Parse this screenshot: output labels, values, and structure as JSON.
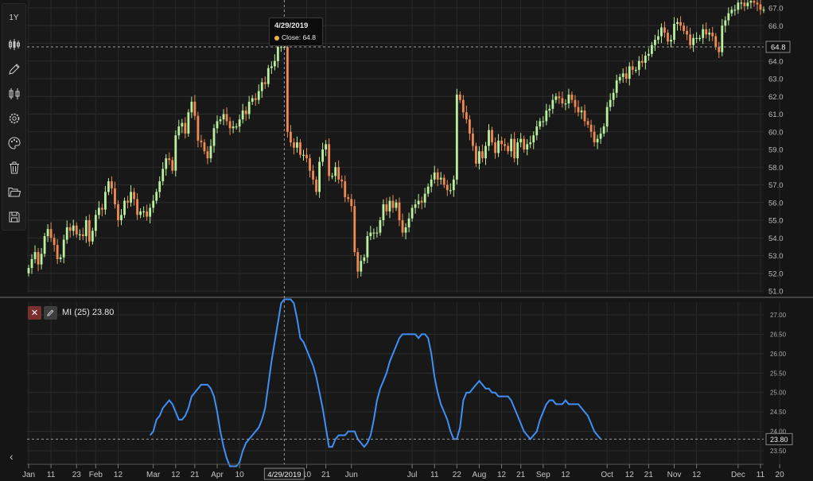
{
  "toolbar": {
    "range_label": "1Y",
    "tools": [
      "candles-icon",
      "pen-icon",
      "candlestick-icon",
      "gear-icon",
      "palette-icon",
      "trash-icon",
      "folder-icon",
      "save-icon"
    ]
  },
  "tooltip": {
    "date": "4/29/2019",
    "close_text": "Close: 64.8"
  },
  "crosshair": {
    "date_label": "4/29/2019",
    "price_label": "64.8",
    "price": 64.8,
    "x_index": 80
  },
  "indicator": {
    "label": "MI (25) 23.80",
    "value_label": "23.80",
    "value": 23.8
  },
  "chart_data": [
    {
      "type": "candlestick",
      "y_ticks": [
        "67.0",
        "66.0",
        "65.0",
        "64.0",
        "63.0",
        "62.0",
        "61.0",
        "60.0",
        "59.0",
        "58.0",
        "57.0",
        "56.0",
        "55.0",
        "54.0",
        "53.0",
        "52.0",
        "51.0"
      ],
      "ylim": [
        51.0,
        67.4
      ],
      "x_ticks": [
        {
          "label": "Jan",
          "i": 0
        },
        {
          "label": "11",
          "i": 7
        },
        {
          "label": "23",
          "i": 15
        },
        {
          "label": "Feb",
          "i": 21
        },
        {
          "label": "12",
          "i": 28
        },
        {
          "label": "Mar",
          "i": 39
        },
        {
          "label": "12",
          "i": 46
        },
        {
          "label": "21",
          "i": 52
        },
        {
          "label": "Apr",
          "i": 59
        },
        {
          "label": "10",
          "i": 66
        },
        {
          "label": "10",
          "i": 87
        },
        {
          "label": "21",
          "i": 93
        },
        {
          "label": "Jun",
          "i": 101
        },
        {
          "label": "Jul",
          "i": 120
        },
        {
          "label": "11",
          "i": 127
        },
        {
          "label": "22",
          "i": 134
        },
        {
          "label": "Aug",
          "i": 141
        },
        {
          "label": "12",
          "i": 148
        },
        {
          "label": "21",
          "i": 154
        },
        {
          "label": "Sep",
          "i": 161
        },
        {
          "label": "12",
          "i": 168
        },
        {
          "label": "Oct",
          "i": 181
        },
        {
          "label": "12",
          "i": 188
        },
        {
          "label": "21",
          "i": 194
        },
        {
          "label": "Nov",
          "i": 202
        },
        {
          "label": "12",
          "i": 209
        },
        {
          "label": "Dec",
          "i": 222
        },
        {
          "label": "11",
          "i": 229
        },
        {
          "label": "20",
          "i": 235
        }
      ],
      "close": [
        52.3,
        52.8,
        53.2,
        52.5,
        53.1,
        54.1,
        54.5,
        54.0,
        53.6,
        52.8,
        52.9,
        53.9,
        54.6,
        54.4,
        54.7,
        54.2,
        54.2,
        54.1,
        55.0,
        53.8,
        54.4,
        55.3,
        55.7,
        55.6,
        56.6,
        57.2,
        56.8,
        55.9,
        55.0,
        55.3,
        56.1,
        56.0,
        56.6,
        56.2,
        55.3,
        55.5,
        55.5,
        55.2,
        55.7,
        56.1,
        56.6,
        57.2,
        57.9,
        58.5,
        58.4,
        57.8,
        59.8,
        60.3,
        60.5,
        59.9,
        61.1,
        61.7,
        60.9,
        59.5,
        59.4,
        58.9,
        58.5,
        59.2,
        60.2,
        60.6,
        60.7,
        61.0,
        60.6,
        60.2,
        60.3,
        60.3,
        60.7,
        61.2,
        61.0,
        61.7,
        61.9,
        61.8,
        62.3,
        62.8,
        62.7,
        63.6,
        63.7,
        64.0,
        64.8,
        64.8,
        64.8,
        60.0,
        59.4,
        59.1,
        59.4,
        58.7,
        58.7,
        58.5,
        57.8,
        57.3,
        56.6,
        58.3,
        59.0,
        59.3,
        57.5,
        57.5,
        58.0,
        57.3,
        57.2,
        56.3,
        56.2,
        55.8,
        53.2,
        52.1,
        52.7,
        52.9,
        54.1,
        54.3,
        54.3,
        54.3,
        55.0,
        55.9,
        55.5,
        56.1,
        55.7,
        56.0,
        55.0,
        54.3,
        54.6,
        55.1,
        55.7,
        55.9,
        56.1,
        56.0,
        56.5,
        56.9,
        57.3,
        57.7,
        57.3,
        57.4,
        57.0,
        56.7,
        56.7,
        57.3,
        62.1,
        61.8,
        61.1,
        60.7,
        59.9,
        59.2,
        58.2,
        58.9,
        58.5,
        59.2,
        60.1,
        59.4,
        58.8,
        59.5,
        59.3,
        59.2,
        58.9,
        59.6,
        58.5,
        59.4,
        59.6,
        59.0,
        59.3,
        59.4,
        59.8,
        60.3,
        60.6,
        60.6,
        61.2,
        61.3,
        61.8,
        62.0,
        61.9,
        61.6,
        61.6,
        62.1,
        61.8,
        61.4,
        61.1,
        61.2,
        60.6,
        60.4,
        60.0,
        59.4,
        59.6,
        59.9,
        60.3,
        61.4,
        61.8,
        62.2,
        62.9,
        63.1,
        63.3,
        63.0,
        63.7,
        63.5,
        63.5,
        64.0,
        63.9,
        64.3,
        64.4,
        64.9,
        65.2,
        65.4,
        65.9,
        65.6,
        65.1,
        65.2,
        66.1,
        66.2,
        66.0,
        65.7,
        65.5,
        64.9,
        65.3,
        65.3,
        65.3,
        65.8,
        65.5,
        65.6,
        65.4,
        64.8,
        64.5,
        66.0,
        66.3,
        66.7,
        66.9,
        66.9,
        67.3,
        67.3,
        67.1,
        67.3,
        67.4,
        67.3,
        67.2,
        66.9,
        66.9
      ]
    },
    {
      "type": "line",
      "series": [
        {
          "name": "MI (25)"
        }
      ],
      "y_ticks": [
        "27.00",
        "26.50",
        "26.00",
        "25.50",
        "25.00",
        "24.50",
        "24.00",
        "23.50"
      ],
      "ylim": [
        23.3,
        27.3
      ],
      "start_index": 38,
      "values": [
        23.9,
        24.0,
        24.3,
        24.4,
        24.6,
        24.7,
        24.8,
        24.7,
        24.5,
        24.3,
        24.3,
        24.4,
        24.6,
        24.9,
        25.0,
        25.1,
        25.2,
        25.2,
        25.2,
        25.1,
        24.9,
        24.5,
        24.0,
        23.6,
        23.3,
        23.1,
        23.1,
        23.1,
        23.2,
        23.5,
        23.7,
        23.8,
        23.9,
        24.0,
        24.1,
        24.3,
        24.6,
        25.2,
        25.8,
        26.3,
        26.8,
        27.3,
        27.4,
        27.4,
        27.4,
        27.3,
        26.9,
        26.4,
        26.3,
        26.1,
        25.9,
        25.7,
        25.4,
        25.0,
        24.6,
        24.1,
        23.6,
        23.6,
        23.8,
        23.9,
        23.9,
        23.9,
        24.0,
        24.0,
        24.0,
        23.8,
        23.7,
        23.6,
        23.7,
        23.9,
        24.3,
        24.8,
        25.1,
        25.3,
        25.5,
        25.8,
        26.0,
        26.2,
        26.4,
        26.5,
        26.5,
        26.5,
        26.5,
        26.5,
        26.4,
        26.5,
        26.5,
        26.4,
        26.0,
        25.4,
        25.0,
        24.7,
        24.5,
        24.3,
        24.0,
        23.8,
        23.8,
        24.1,
        24.8,
        25.0,
        25.0,
        25.1,
        25.2,
        25.3,
        25.2,
        25.1,
        25.1,
        25.0,
        25.0,
        24.9,
        24.9,
        24.9,
        24.9,
        24.8,
        24.6,
        24.4,
        24.2,
        24.0,
        23.9,
        23.8,
        23.9,
        24.0,
        24.3,
        24.5,
        24.7,
        24.8,
        24.8,
        24.7,
        24.7,
        24.7,
        24.8,
        24.7,
        24.7,
        24.7,
        24.7,
        24.6,
        24.5,
        24.4,
        24.2,
        24.0,
        23.9,
        23.8
      ]
    }
  ]
}
